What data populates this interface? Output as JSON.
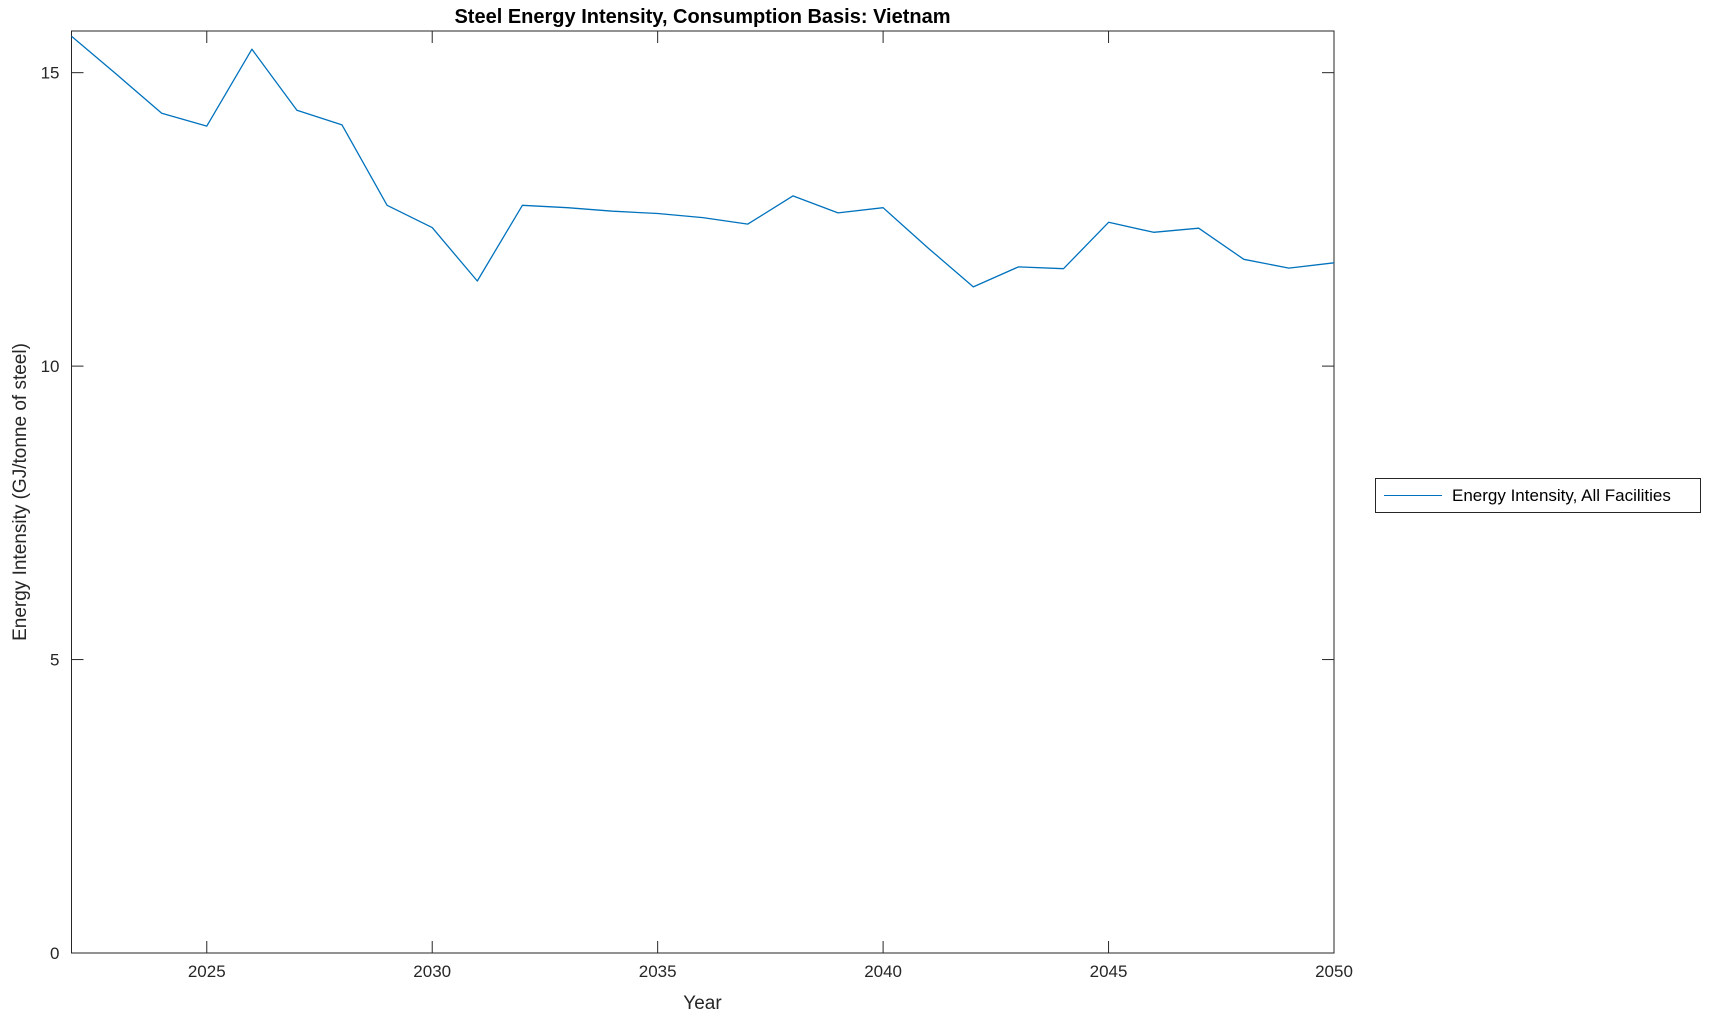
{
  "figure": {
    "background": "#ffffff",
    "axis_color": "#262626",
    "line_color": "#0072BD"
  },
  "chart_data": {
    "type": "line",
    "title": "Steel Energy Intensity, Consumption Basis: Vietnam",
    "xlabel": "Year",
    "ylabel": "Energy Intensity (GJ/tonne of steel)",
    "xlim": [
      2022,
      2050
    ],
    "ylim": [
      0,
      15.71
    ],
    "xticks": [
      2025,
      2030,
      2035,
      2040,
      2045,
      2050
    ],
    "yticks": [
      0,
      5,
      10,
      15
    ],
    "grid": false,
    "box": true,
    "legend": {
      "position": "eastoutside",
      "entries": [
        "Energy Intensity, All Facilities"
      ]
    },
    "series": [
      {
        "name": "Energy Intensity, All Facilities",
        "color": "#0072BD",
        "x": [
          2022,
          2023,
          2024,
          2025,
          2026,
          2027,
          2028,
          2029,
          2030,
          2031,
          2032,
          2033,
          2034,
          2035,
          2036,
          2037,
          2038,
          2039,
          2040,
          2041,
          2042,
          2043,
          2044,
          2045,
          2046,
          2047,
          2048,
          2049,
          2050
        ],
        "values": [
          15.62,
          14.97,
          14.31,
          14.09,
          15.4,
          14.36,
          14.11,
          12.74,
          12.36,
          11.45,
          12.74,
          12.7,
          12.64,
          12.6,
          12.53,
          12.42,
          12.9,
          12.61,
          12.7,
          12.01,
          11.35,
          11.69,
          11.66,
          12.45,
          12.28,
          12.35,
          11.82,
          11.67,
          11.76
        ]
      }
    ]
  }
}
